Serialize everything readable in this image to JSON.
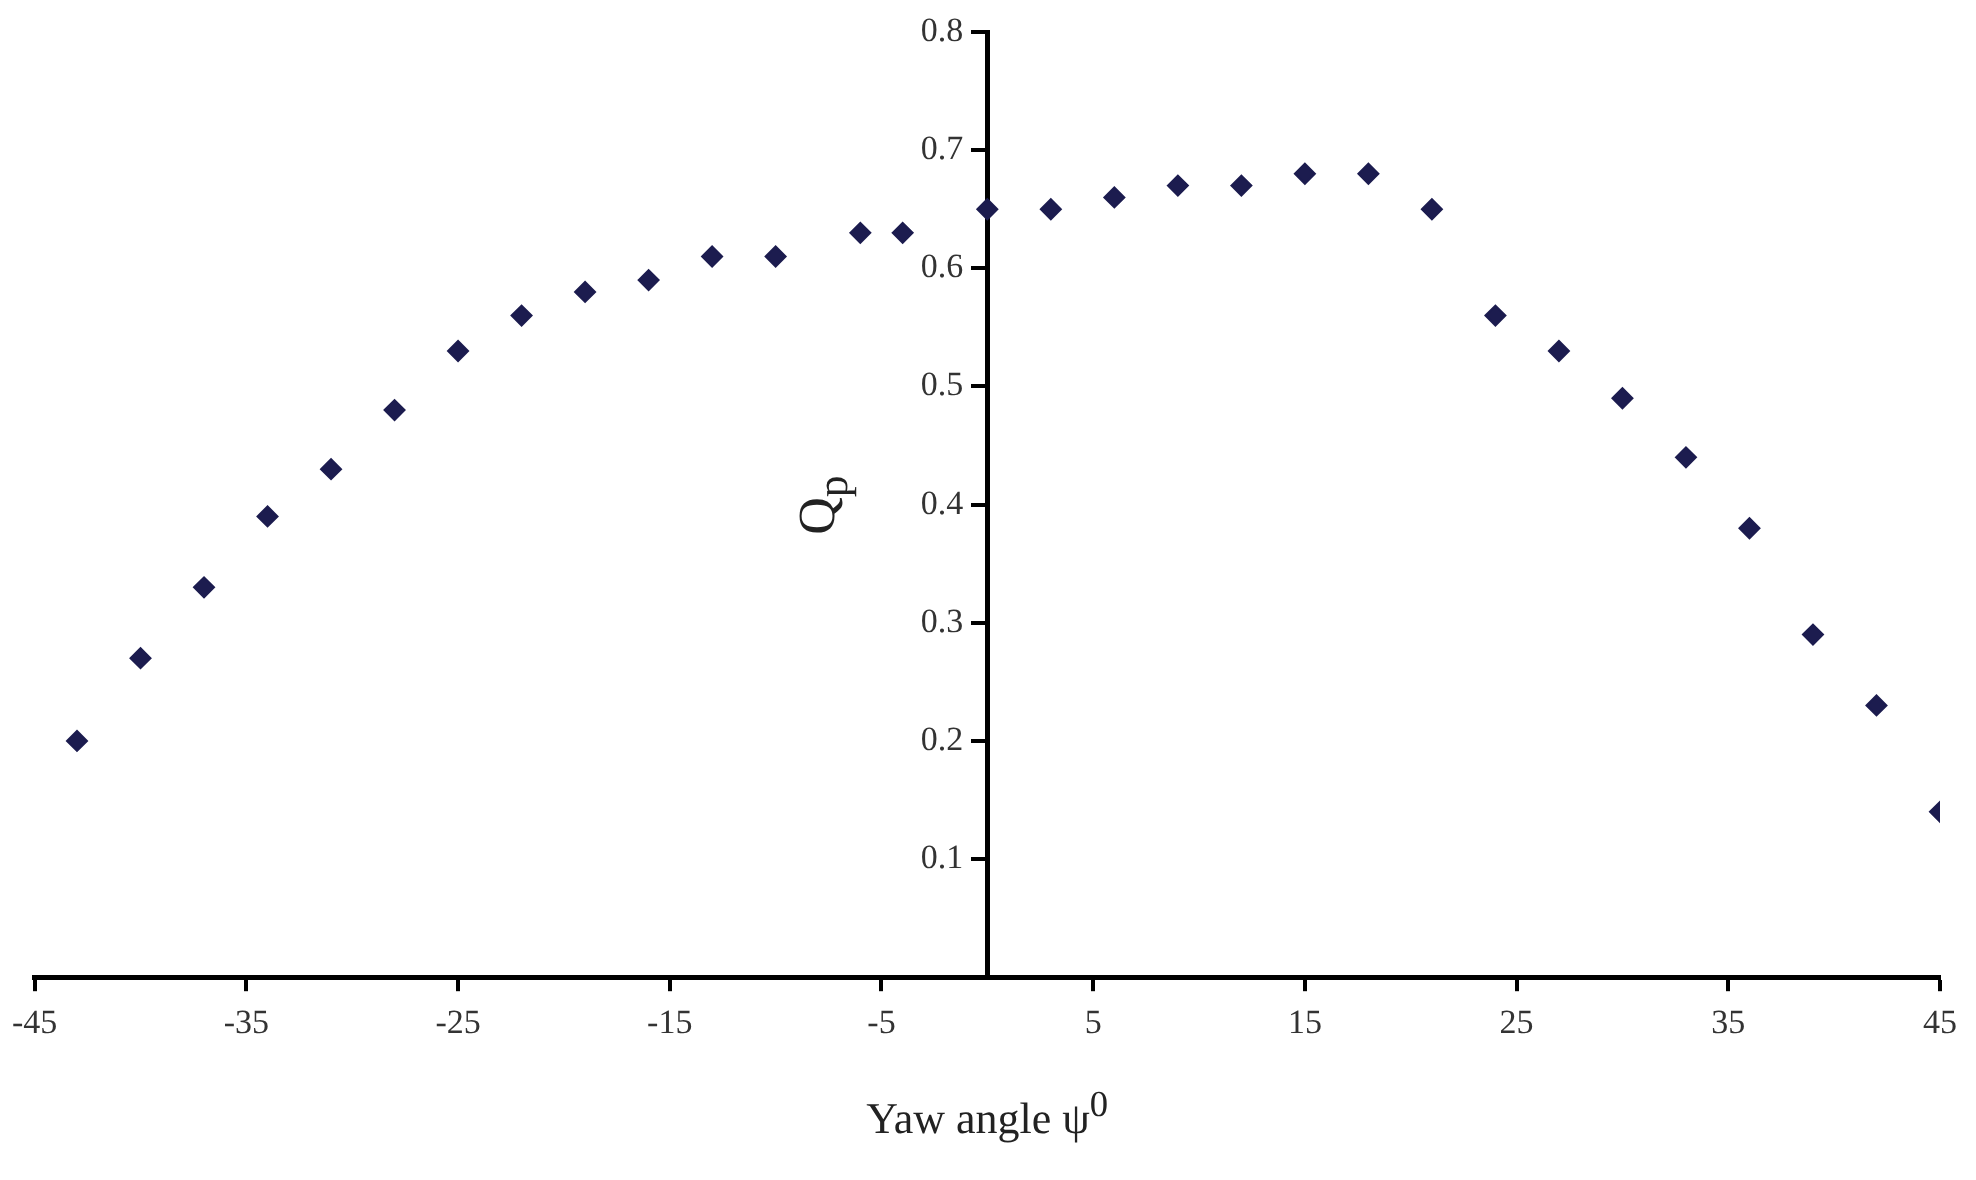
{
  "chart_data": {
    "type": "scatter",
    "xlabel": "Yaw angle ψ$^{0}$",
    "ylabel": "Q$_{p}$",
    "x": [
      -43,
      -40,
      -37,
      -34,
      -31,
      -28,
      -25,
      -22,
      -19,
      -16,
      -13,
      -10,
      -6,
      -4,
      0,
      3,
      6,
      9,
      12,
      15,
      18,
      21,
      24,
      27,
      30,
      33,
      36,
      39,
      42,
      45
    ],
    "series": [
      {
        "color": "#1c1c4f",
        "values": [
          0.2,
          0.27,
          0.33,
          0.39,
          0.43,
          0.48,
          0.53,
          0.56,
          0.58,
          0.59,
          0.61,
          0.61,
          0.63,
          0.63,
          0.65,
          0.65,
          0.66,
          0.67,
          0.67,
          0.68,
          0.68,
          0.65,
          0.56,
          0.53,
          0.49,
          0.44,
          0.38,
          0.29,
          0.23,
          0.14
        ]
      }
    ],
    "xlim": [
      -45,
      45
    ],
    "xticks": [
      -45,
      -35,
      -25,
      -15,
      -5,
      5,
      15,
      25,
      35,
      45
    ],
    "ylim": [
      0,
      0.8
    ],
    "yticks": [
      {
        "value": 0,
        "label": null
      },
      0.1,
      0.2,
      0.3,
      0.4,
      0.5,
      0.6,
      0.7,
      0.8
    ],
    "marker": "diamond",
    "grid": false,
    "legend": false
  }
}
